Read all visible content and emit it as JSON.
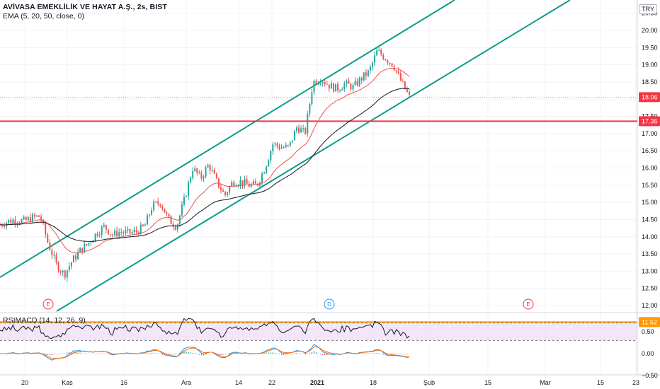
{
  "header": {
    "title": "AVİVASA EMEKLİLİK VE HAYAT A.Ş., 2s, BIST",
    "indicator": "EMA (5, 20, 50, close, 0)",
    "currency": "TRY"
  },
  "rsi_panel": {
    "title": "RSIMACD (14, 12, 26, 9)"
  },
  "colors": {
    "channel": "#0d9c8a",
    "hline_red": "#f23645",
    "hline_orange": "#ff9800",
    "up_candle": "#26a69a",
    "down_candle": "#ef5350",
    "ema_fast": "#ef5350",
    "ema_slow": "#131722",
    "rsi_band": "#e9d5f3",
    "macd": "#2196f3",
    "signal": "#ff6d00"
  },
  "chart_data": {
    "type": "candlestick",
    "y_ticks": [
      "20.50",
      "20.00",
      "19.50",
      "19.00",
      "18.50",
      "18.00",
      "17.50",
      "17.00",
      "16.50",
      "16.00",
      "15.50",
      "15.00",
      "14.50",
      "14.00",
      "13.50",
      "13.00",
      "12.50",
      "12.00"
    ],
    "ylim": [
      11.4,
      20.7
    ],
    "x_ticks": [
      "20",
      "Kas",
      "16",
      "Ara",
      "14",
      "22",
      "2021",
      "18",
      "Şub",
      "15",
      "Mar",
      "15",
      "23"
    ],
    "price_labels": [
      {
        "value": 18.06,
        "text": "18.06",
        "color": "#f23645"
      },
      {
        "value": 17.36,
        "text": "17.36",
        "color": "#f23645"
      },
      {
        "value": 11.52,
        "text": "11.52",
        "color": "#ff9800"
      }
    ],
    "horizontal_lines": [
      {
        "value": 17.36,
        "color": "#f23645"
      },
      {
        "value": 11.52,
        "color": "#ff9800"
      }
    ],
    "channel_lines": [
      "upper",
      "lower"
    ],
    "price_path": [
      {
        "t": 0,
        "v": 14.35
      },
      {
        "t": 1,
        "v": 14.45
      },
      {
        "t": 2,
        "v": 14.5
      },
      {
        "t": 3,
        "v": 14.45
      },
      {
        "t": 4,
        "v": 14.55
      },
      {
        "t": 5,
        "v": 14.6
      },
      {
        "t": 6,
        "v": 13.8
      },
      {
        "t": 7,
        "v": 13.2
      },
      {
        "t": 8,
        "v": 12.9
      },
      {
        "t": 9,
        "v": 13.3
      },
      {
        "t": 10,
        "v": 13.6
      },
      {
        "t": 11,
        "v": 13.8
      },
      {
        "t": 12,
        "v": 14.1
      },
      {
        "t": 13,
        "v": 14.3
      },
      {
        "t": 14,
        "v": 14.05
      },
      {
        "t": 15,
        "v": 14.15
      },
      {
        "t": 16,
        "v": 14.1
      },
      {
        "t": 17,
        "v": 14.15
      },
      {
        "t": 18,
        "v": 14.3
      },
      {
        "t": 19,
        "v": 14.9
      },
      {
        "t": 20,
        "v": 15.0
      },
      {
        "t": 21,
        "v": 14.5
      },
      {
        "t": 22,
        "v": 14.3
      },
      {
        "t": 23,
        "v": 15.1
      },
      {
        "t": 24,
        "v": 16.0
      },
      {
        "t": 25,
        "v": 15.7
      },
      {
        "t": 26,
        "v": 16.1
      },
      {
        "t": 27,
        "v": 15.6
      },
      {
        "t": 28,
        "v": 15.2
      },
      {
        "t": 29,
        "v": 15.6
      },
      {
        "t": 30,
        "v": 15.6
      },
      {
        "t": 31,
        "v": 15.5
      },
      {
        "t": 32,
        "v": 15.5
      },
      {
        "t": 33,
        "v": 16.0
      },
      {
        "t": 34,
        "v": 16.7
      },
      {
        "t": 35,
        "v": 16.6
      },
      {
        "t": 36,
        "v": 16.6
      },
      {
        "t": 37,
        "v": 17.2
      },
      {
        "t": 38,
        "v": 17.0
      },
      {
        "t": 39,
        "v": 18.5
      },
      {
        "t": 40,
        "v": 18.6
      },
      {
        "t": 41,
        "v": 18.4
      },
      {
        "t": 42,
        "v": 18.3
      },
      {
        "t": 43,
        "v": 18.45
      },
      {
        "t": 44,
        "v": 18.35
      },
      {
        "t": 45,
        "v": 18.6
      },
      {
        "t": 46,
        "v": 18.8
      },
      {
        "t": 47,
        "v": 19.4
      },
      {
        "t": 48,
        "v": 19.2
      },
      {
        "t": 49,
        "v": 19.0
      },
      {
        "t": 50,
        "v": 18.5
      },
      {
        "t": 51,
        "v": 18.06
      }
    ],
    "events": [
      {
        "label": "E",
        "color": "#f23645"
      },
      {
        "label": "D",
        "color": "#2196f3"
      },
      {
        "label": "E",
        "color": "#f23645"
      }
    ],
    "rsi_ticks": [
      "0.50",
      "0.00",
      "−0.50"
    ]
  }
}
